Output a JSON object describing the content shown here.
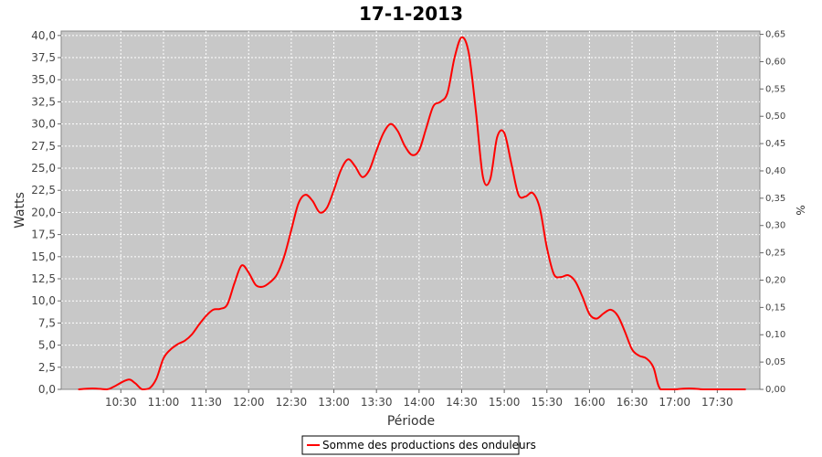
{
  "chart_data": {
    "type": "line",
    "title": "17-1-2013",
    "xlabel": "Période",
    "ylabel": "Watts",
    "y2label": "%",
    "grid": true,
    "legend_position": "bottom",
    "x_ticks": [
      "10:30",
      "11:00",
      "11:30",
      "12:00",
      "12:30",
      "13:00",
      "13:30",
      "14:00",
      "14:30",
      "15:00",
      "15:30",
      "16:00",
      "16:30",
      "17:00",
      "17:30"
    ],
    "x_range_hours": [
      9.8,
      18.0
    ],
    "ylim": [
      0,
      40.5
    ],
    "y_ticks": [
      "0,0",
      "2,5",
      "5,0",
      "7,5",
      "10,0",
      "12,5",
      "15,0",
      "17,5",
      "20,0",
      "22,5",
      "25,0",
      "27,5",
      "30,0",
      "32,5",
      "35,0",
      "37,5",
      "40,0"
    ],
    "y2lim": [
      0,
      0.656
    ],
    "y2_ticks": [
      "0,00",
      "0,05",
      "0,10",
      "0,15",
      "0,20",
      "0,25",
      "0,30",
      "0,35",
      "0,40",
      "0,45",
      "0,50",
      "0,55",
      "0,60",
      "0,65"
    ],
    "series": [
      {
        "name": "Somme des productions des onduleurs",
        "color": "#ff0000",
        "x": [
          "10:00",
          "10:10",
          "10:20",
          "10:25",
          "10:35",
          "10:40",
          "10:45",
          "10:50",
          "10:55",
          "11:00",
          "11:05",
          "11:10",
          "11:15",
          "11:20",
          "11:25",
          "11:30",
          "11:35",
          "11:40",
          "11:45",
          "11:50",
          "11:55",
          "12:00",
          "12:05",
          "12:10",
          "12:15",
          "12:20",
          "12:25",
          "12:30",
          "12:35",
          "12:40",
          "12:45",
          "12:50",
          "12:55",
          "13:00",
          "13:05",
          "13:10",
          "13:15",
          "13:20",
          "13:25",
          "13:30",
          "13:35",
          "13:40",
          "13:45",
          "13:50",
          "13:55",
          "14:00",
          "14:05",
          "14:10",
          "14:15",
          "14:20",
          "14:25",
          "14:30",
          "14:35",
          "14:40",
          "14:45",
          "14:50",
          "14:55",
          "15:00",
          "15:05",
          "15:10",
          "15:15",
          "15:20",
          "15:25",
          "15:30",
          "15:35",
          "15:40",
          "15:45",
          "15:50",
          "15:55",
          "16:00",
          "16:05",
          "16:10",
          "16:15",
          "16:20",
          "16:25",
          "16:30",
          "16:35",
          "16:40",
          "16:45",
          "16:50",
          "17:00",
          "17:10",
          "17:20",
          "17:30",
          "17:40",
          "17:50"
        ],
        "values": [
          0,
          0.1,
          0,
          0.3,
          1.1,
          0.7,
          0,
          0.1,
          1.2,
          3.5,
          4.5,
          5.1,
          5.5,
          6.2,
          7.3,
          8.3,
          9.0,
          9.1,
          9.6,
          12.0,
          14.0,
          13.2,
          11.8,
          11.6,
          12.1,
          13.0,
          15.0,
          18.0,
          21.0,
          22.0,
          21.3,
          20.0,
          20.5,
          22.5,
          24.8,
          26.0,
          25.2,
          24.0,
          24.8,
          27.0,
          29.0,
          30.0,
          29.2,
          27.5,
          26.5,
          27.0,
          29.5,
          32.0,
          32.5,
          33.5,
          37.5,
          39.8,
          38.0,
          31.5,
          24.0,
          23.7,
          28.5,
          29.0,
          25.5,
          22.0,
          21.8,
          22.2,
          20.5,
          16.0,
          13.0,
          12.7,
          12.9,
          12.2,
          10.5,
          8.5,
          8.0,
          8.6,
          9.0,
          8.3,
          6.5,
          4.5,
          3.8,
          3.5,
          2.5,
          0,
          0,
          0.1,
          0,
          0,
          0,
          0
        ]
      }
    ]
  }
}
